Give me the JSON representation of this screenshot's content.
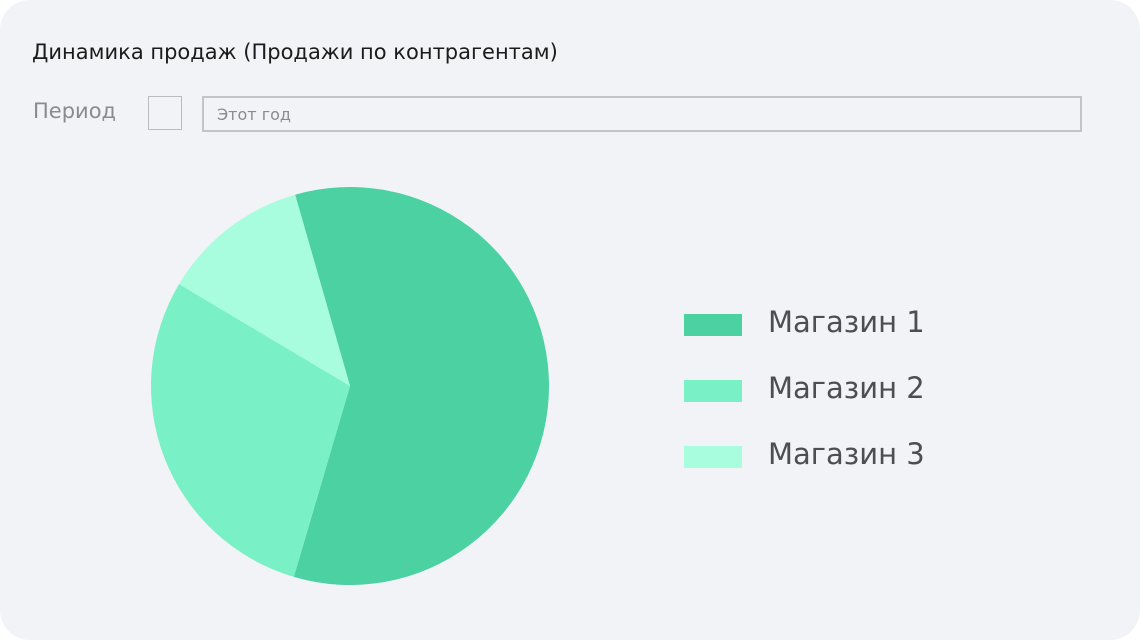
{
  "card": {
    "title": "Динамика продаж (Продажи по контрагентам)",
    "period_label": "Период",
    "period_value": "Этот год"
  },
  "colors": {
    "background": "#f1f3f6",
    "slice1": "#4cd1a2",
    "slice2": "#7af0c6",
    "slice3": "#a7fddd"
  },
  "chart_data": {
    "type": "pie",
    "title": "",
    "categories": [
      "Магазин 1",
      "Магазин 2",
      "Магазин 3"
    ],
    "values": [
      59,
      29,
      12
    ],
    "colors": [
      "#4cd1a2",
      "#7af0c6",
      "#a7fddd"
    ],
    "start_angle_deg": -16,
    "legend_position": "right"
  }
}
